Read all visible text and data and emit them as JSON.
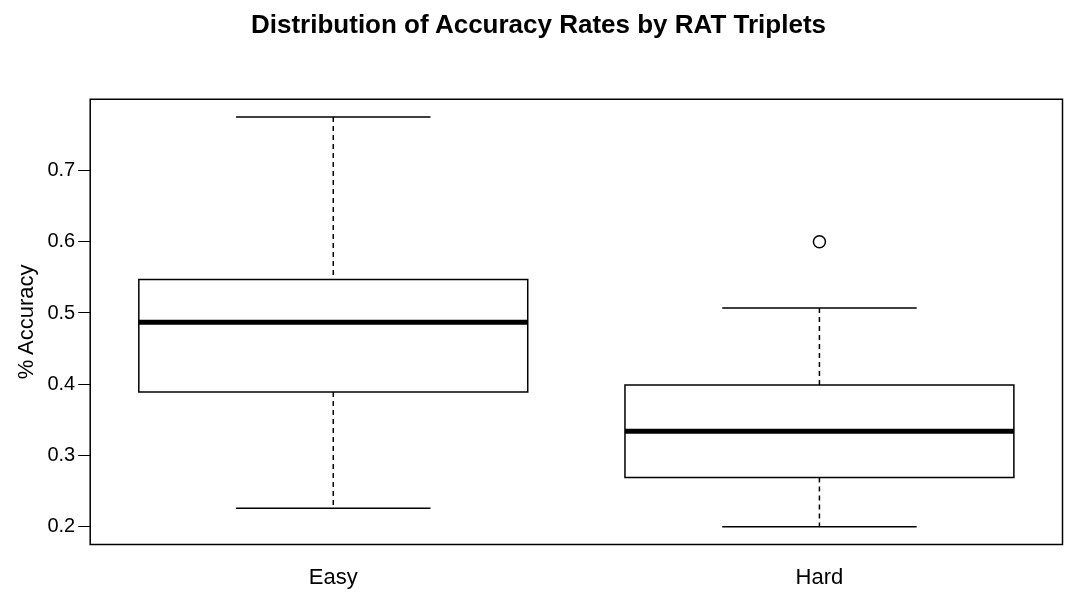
{
  "chart_data": {
    "type": "box",
    "title": "Distribution of Accuracy Rates by RAT Triplets",
    "ylabel": "% Accuracy",
    "categories": [
      "Easy",
      "Hard"
    ],
    "boxes": [
      {
        "low": 0.226,
        "q1": 0.389,
        "median": 0.487,
        "q3": 0.547,
        "high": 0.775
      },
      {
        "low": 0.2,
        "q1": 0.269,
        "median": 0.334,
        "q3": 0.399,
        "high": 0.507,
        "outliers": [
          0.6
        ]
      }
    ],
    "ylim": [
      0.175,
      0.8
    ],
    "yticks": [
      0.2,
      0.3,
      0.4,
      0.5,
      0.6,
      0.7
    ],
    "grid": false,
    "legend": false
  }
}
